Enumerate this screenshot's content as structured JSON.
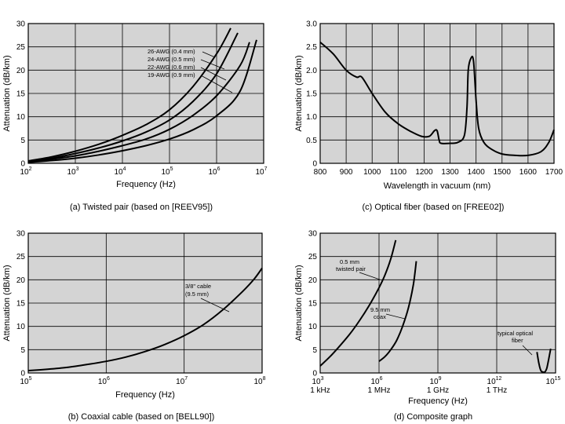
{
  "chart_data": [
    {
      "id": "a",
      "type": "line",
      "xscale": "log10",
      "xlim": [
        2,
        7
      ],
      "ylim": [
        0,
        30
      ],
      "xticks": [
        2,
        3,
        4,
        5,
        6,
        7
      ],
      "xtick_labels": [
        "10",
        "10",
        "10",
        "10",
        "10",
        "10"
      ],
      "xtick_sups": [
        "2",
        "3",
        "4",
        "5",
        "6",
        "7"
      ],
      "yticks": [
        0,
        5,
        10,
        15,
        20,
        25,
        30
      ],
      "ytick_labels": [
        "0",
        "5",
        "10",
        "15",
        "20",
        "25",
        "30"
      ],
      "xlabel": "Frequency (Hz)",
      "ylabel": "Attenuation (dB/km)",
      "caption": "(a) Twisted pair (based on [REEV95])",
      "series": [
        {
          "name": "26-AWG (0.4 mm)",
          "x": [
            2,
            2.5,
            3,
            3.5,
            4,
            4.5,
            5,
            5.5,
            6,
            6.3
          ],
          "y": [
            0.5,
            1.4,
            2.6,
            4.1,
            6,
            8.3,
            11.5,
            16.5,
            23.5,
            29
          ]
        },
        {
          "name": "24-AWG (0.5 mm)",
          "x": [
            2,
            2.5,
            3,
            3.5,
            4,
            4.5,
            5,
            5.5,
            6,
            6.45
          ],
          "y": [
            0.4,
            1.1,
            2.1,
            3.3,
            4.8,
            6.7,
            9.3,
            13.3,
            19.2,
            28
          ]
        },
        {
          "name": "22-AWG (0.6 mm)",
          "x": [
            2,
            2.5,
            3,
            3.5,
            4,
            4.5,
            5,
            5.5,
            6,
            6.5,
            6.7
          ],
          "y": [
            0.3,
            0.9,
            1.6,
            2.6,
            3.8,
            5.2,
            7.3,
            10.3,
            14.5,
            21,
            26
          ]
        },
        {
          "name": "19-AWG (0.9 mm)",
          "x": [
            2,
            2.5,
            3,
            3.5,
            4,
            4.5,
            5,
            5.5,
            6,
            6.5,
            6.85
          ],
          "y": [
            0.2,
            0.6,
            1.1,
            1.8,
            2.7,
            3.8,
            5.2,
            7.2,
            10.2,
            15.5,
            26.5
          ]
        }
      ],
      "annotations": [
        "26-AWG (0.4 mm)",
        "24-AWG (0.5 mm)",
        "22-AWG (0.6 mm)",
        "19-AWG (0.9 mm)"
      ]
    },
    {
      "id": "c",
      "type": "line",
      "xscale": "linear",
      "xlim": [
        800,
        1700
      ],
      "ylim": [
        0,
        3
      ],
      "xticks": [
        800,
        900,
        1000,
        1100,
        1200,
        1300,
        1400,
        1500,
        1600,
        1700
      ],
      "xtick_labels": [
        "800",
        "900",
        "1000",
        "1100",
        "1200",
        "1300",
        "1400",
        "1500",
        "1600",
        "1700"
      ],
      "yticks": [
        0,
        0.5,
        1,
        1.5,
        2,
        2.5,
        3
      ],
      "ytick_labels": [
        "0",
        "0.5",
        "1.0",
        "1.5",
        "2.0",
        "2.5",
        "3.0"
      ],
      "xlabel": "Wavelength in vacuum (nm)",
      "ylabel": "Attenuation (dB/km)",
      "caption": "(c) Optical fiber (based on [FREE02])",
      "series": [
        {
          "name": "optical fiber",
          "x": [
            800,
            850,
            900,
            940,
            960,
            1000,
            1050,
            1100,
            1150,
            1190,
            1220,
            1240,
            1250,
            1258,
            1265,
            1300,
            1330,
            1355,
            1365,
            1370,
            1380,
            1390,
            1400,
            1410,
            1430,
            1460,
            1500,
            1550,
            1600,
            1650,
            1680,
            1700
          ],
          "y": [
            2.6,
            2.35,
            2.0,
            1.85,
            1.85,
            1.5,
            1.1,
            0.85,
            0.68,
            0.58,
            0.58,
            0.7,
            0.7,
            0.5,
            0.43,
            0.43,
            0.45,
            0.6,
            1.2,
            2.0,
            2.25,
            2.2,
            1.35,
            0.75,
            0.45,
            0.3,
            0.2,
            0.17,
            0.17,
            0.25,
            0.45,
            0.72
          ]
        }
      ]
    },
    {
      "id": "b",
      "type": "line",
      "xscale": "log10",
      "xlim": [
        5,
        8
      ],
      "ylim": [
        0,
        30
      ],
      "xticks": [
        5,
        6,
        7,
        8
      ],
      "xtick_labels": [
        "10",
        "10",
        "10",
        "10"
      ],
      "xtick_sups": [
        "5",
        "6",
        "7",
        "8"
      ],
      "yticks": [
        0,
        5,
        10,
        15,
        20,
        25,
        30
      ],
      "ytick_labels": [
        "0",
        "5",
        "10",
        "15",
        "20",
        "25",
        "30"
      ],
      "xlabel": "Frequency (Hz)",
      "ylabel": "Attenuation (dB/km)",
      "caption": "(b) Coaxial cable (based on [BELL90])",
      "series": [
        {
          "name": "3/8\" cable (9.5 mm)",
          "x": [
            5,
            5.25,
            5.5,
            5.75,
            6,
            6.25,
            6.5,
            6.75,
            7,
            7.25,
            7.5,
            7.75,
            7.9,
            8
          ],
          "y": [
            0.5,
            0.8,
            1.2,
            1.8,
            2.5,
            3.4,
            4.6,
            6.1,
            8,
            10.4,
            13.6,
            17.5,
            20.2,
            22.5
          ]
        }
      ],
      "annotations": [
        "3/8\" cable",
        "(9.5 mm)"
      ]
    },
    {
      "id": "d",
      "type": "line",
      "xscale": "log10",
      "xlim": [
        3,
        15
      ],
      "ylim": [
        0,
        30
      ],
      "xticks": [
        3,
        6,
        9,
        12,
        15
      ],
      "xtick_labels": [
        "10",
        "10",
        "10",
        "10",
        "10"
      ],
      "xtick_sups": [
        "3",
        "6",
        "9",
        "12",
        "15"
      ],
      "xtick_sublabels": [
        "1 kHz",
        "1 MHz",
        "1 GHz",
        "1 THz",
        ""
      ],
      "yticks": [
        0,
        5,
        10,
        15,
        20,
        25,
        30
      ],
      "ytick_labels": [
        "0",
        "5",
        "10",
        "15",
        "20",
        "25",
        "30"
      ],
      "xlabel": "Frequency (Hz)",
      "ylabel": "Attenuation (dB/km)",
      "caption": "(d) Composite graph",
      "series": [
        {
          "name": "0.5 mm twisted pair",
          "x": [
            3,
            3.5,
            4,
            4.5,
            5,
            5.5,
            6,
            6.3,
            6.6,
            6.85
          ],
          "y": [
            1.5,
            3.5,
            5.8,
            8.3,
            11.2,
            14.5,
            18.3,
            21,
            24.5,
            28.5
          ]
        },
        {
          "name": "9.5 mm coax",
          "x": [
            6.0,
            6.3,
            6.6,
            6.9,
            7.2,
            7.5,
            7.75,
            7.9
          ],
          "y": [
            2.5,
            3.5,
            5,
            7,
            10,
            14,
            19,
            24
          ]
        },
        {
          "name": "typical optical fiber",
          "x": [
            14.05,
            14.15,
            14.25,
            14.35,
            14.45,
            14.55,
            14.65,
            14.75
          ],
          "y": [
            4.5,
            2.0,
            0.5,
            0.2,
            0.2,
            1.0,
            3.0,
            5.2
          ]
        }
      ],
      "annotations": [
        "0.5 mm",
        "twisted pair",
        "9.5 mm",
        "coax",
        "typical optical",
        "fiber"
      ]
    }
  ]
}
